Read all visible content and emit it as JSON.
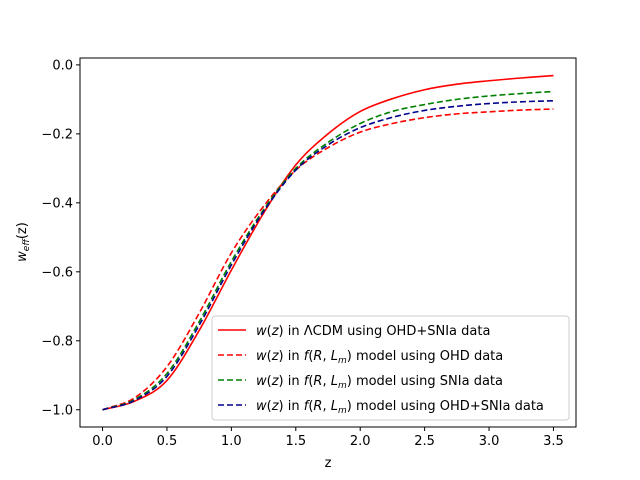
{
  "chart_data": {
    "type": "line",
    "title": "",
    "xlabel": "z",
    "ylabel": {
      "base": "w",
      "sub": "eff",
      "arg": "(z)"
    },
    "xlim": [
      -0.175,
      3.675
    ],
    "ylim": [
      -1.05,
      0.02
    ],
    "xticks": [
      0.0,
      0.5,
      1.0,
      1.5,
      2.0,
      2.5,
      3.0,
      3.5
    ],
    "xtick_labels": [
      "0.0",
      "0.5",
      "1.0",
      "1.5",
      "2.0",
      "2.5",
      "3.0",
      "3.5"
    ],
    "yticks": [
      -1.0,
      -0.8,
      -0.6,
      -0.4,
      -0.2,
      0.0
    ],
    "ytick_labels": [
      "−1.0",
      "−0.8",
      "−0.6",
      "−0.4",
      "−0.2",
      "0.0"
    ],
    "legend_position": "lower-right",
    "x": [
      0.0,
      0.25,
      0.5,
      0.75,
      1.0,
      1.25,
      1.5,
      1.75,
      2.0,
      2.25,
      2.5,
      2.75,
      3.0,
      3.25,
      3.5
    ],
    "series": [
      {
        "name": "LCDM",
        "legend": {
          "pre": "w(z) in ",
          "lambda": "Λ",
          "post": "CDM using OHD+SNIa data"
        },
        "color": "#ff0000",
        "style": "solid",
        "values": [
          -1.0,
          -0.975,
          -0.915,
          -0.77,
          -0.595,
          -0.43,
          -0.29,
          -0.2,
          -0.135,
          -0.098,
          -0.072,
          -0.056,
          -0.046,
          -0.038,
          -0.031
        ]
      },
      {
        "name": "fRLm-OHD",
        "legend": {
          "pre": "w(z) in ",
          "f": "f(R, L",
          "sub": "m",
          "post": ") model using OHD data"
        },
        "color": "#ff0000",
        "style": "dashed",
        "values": [
          -1.0,
          -0.965,
          -0.875,
          -0.72,
          -0.545,
          -0.41,
          -0.305,
          -0.24,
          -0.195,
          -0.17,
          -0.153,
          -0.142,
          -0.136,
          -0.131,
          -0.128
        ]
      },
      {
        "name": "fRLm-SNIa",
        "legend": {
          "pre": "w(z) in ",
          "f": "f(R, L",
          "sub": "m",
          "post": ") model using SNIa data"
        },
        "color": "#008000",
        "style": "dashed",
        "values": [
          -1.0,
          -0.97,
          -0.895,
          -0.745,
          -0.57,
          -0.42,
          -0.3,
          -0.225,
          -0.17,
          -0.135,
          -0.115,
          -0.1,
          -0.09,
          -0.083,
          -0.077
        ]
      },
      {
        "name": "fRLm-OHD+SNIa",
        "legend": {
          "pre": "w(z) in ",
          "f": "f(R, L",
          "sub": "m",
          "post": ") model using OHD+SNIa data"
        },
        "color": "#00008b",
        "style": "dashed",
        "values": [
          -1.0,
          -0.973,
          -0.903,
          -0.755,
          -0.58,
          -0.425,
          -0.305,
          -0.232,
          -0.182,
          -0.152,
          -0.132,
          -0.12,
          -0.112,
          -0.107,
          -0.104
        ]
      }
    ]
  }
}
